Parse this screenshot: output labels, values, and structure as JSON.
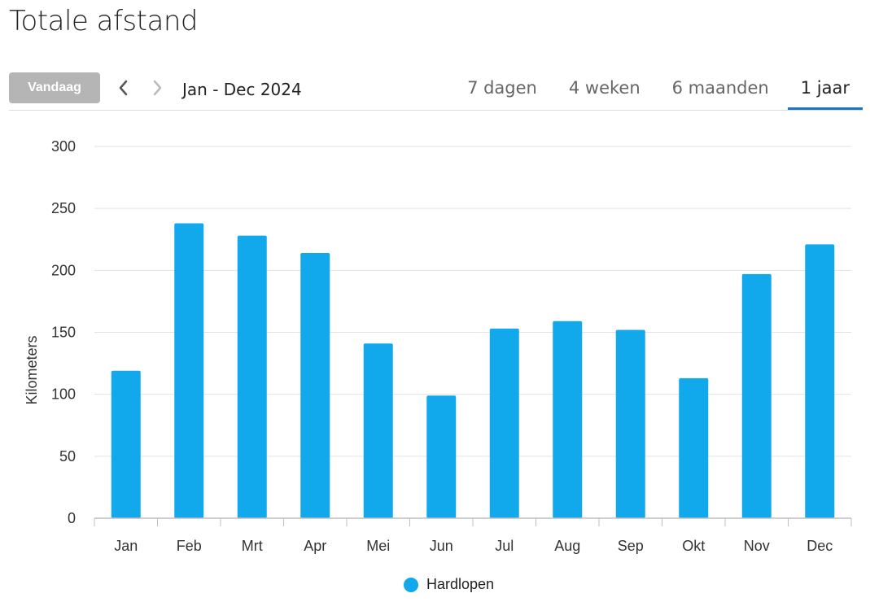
{
  "header": {
    "title": "Totale afstand"
  },
  "toolbar": {
    "today_label": "Vandaag",
    "range_label": "Jan - Dec 2024",
    "tabs": [
      {
        "label": "7 dagen"
      },
      {
        "label": "4 weken"
      },
      {
        "label": "6 maanden"
      },
      {
        "label": "1 jaar",
        "active": true
      }
    ]
  },
  "colors": {
    "bar": "#12a8ec",
    "accent": "#1a75c4",
    "button": "#b5b5b5"
  },
  "chart_data": {
    "type": "bar",
    "categories": [
      "Jan",
      "Feb",
      "Mrt",
      "Apr",
      "Mei",
      "Jun",
      "Jul",
      "Aug",
      "Sep",
      "Okt",
      "Nov",
      "Dec"
    ],
    "series": [
      {
        "name": "Hardlopen",
        "values": [
          119,
          238,
          228,
          214,
          141,
          99,
          153,
          159,
          152,
          113,
          197,
          221
        ]
      }
    ],
    "ylabel": "Kilometers",
    "ylim": [
      0,
      300
    ],
    "yticks": [
      0,
      50,
      100,
      150,
      200,
      250,
      300
    ],
    "grid": true,
    "legend": "bottom-center"
  }
}
